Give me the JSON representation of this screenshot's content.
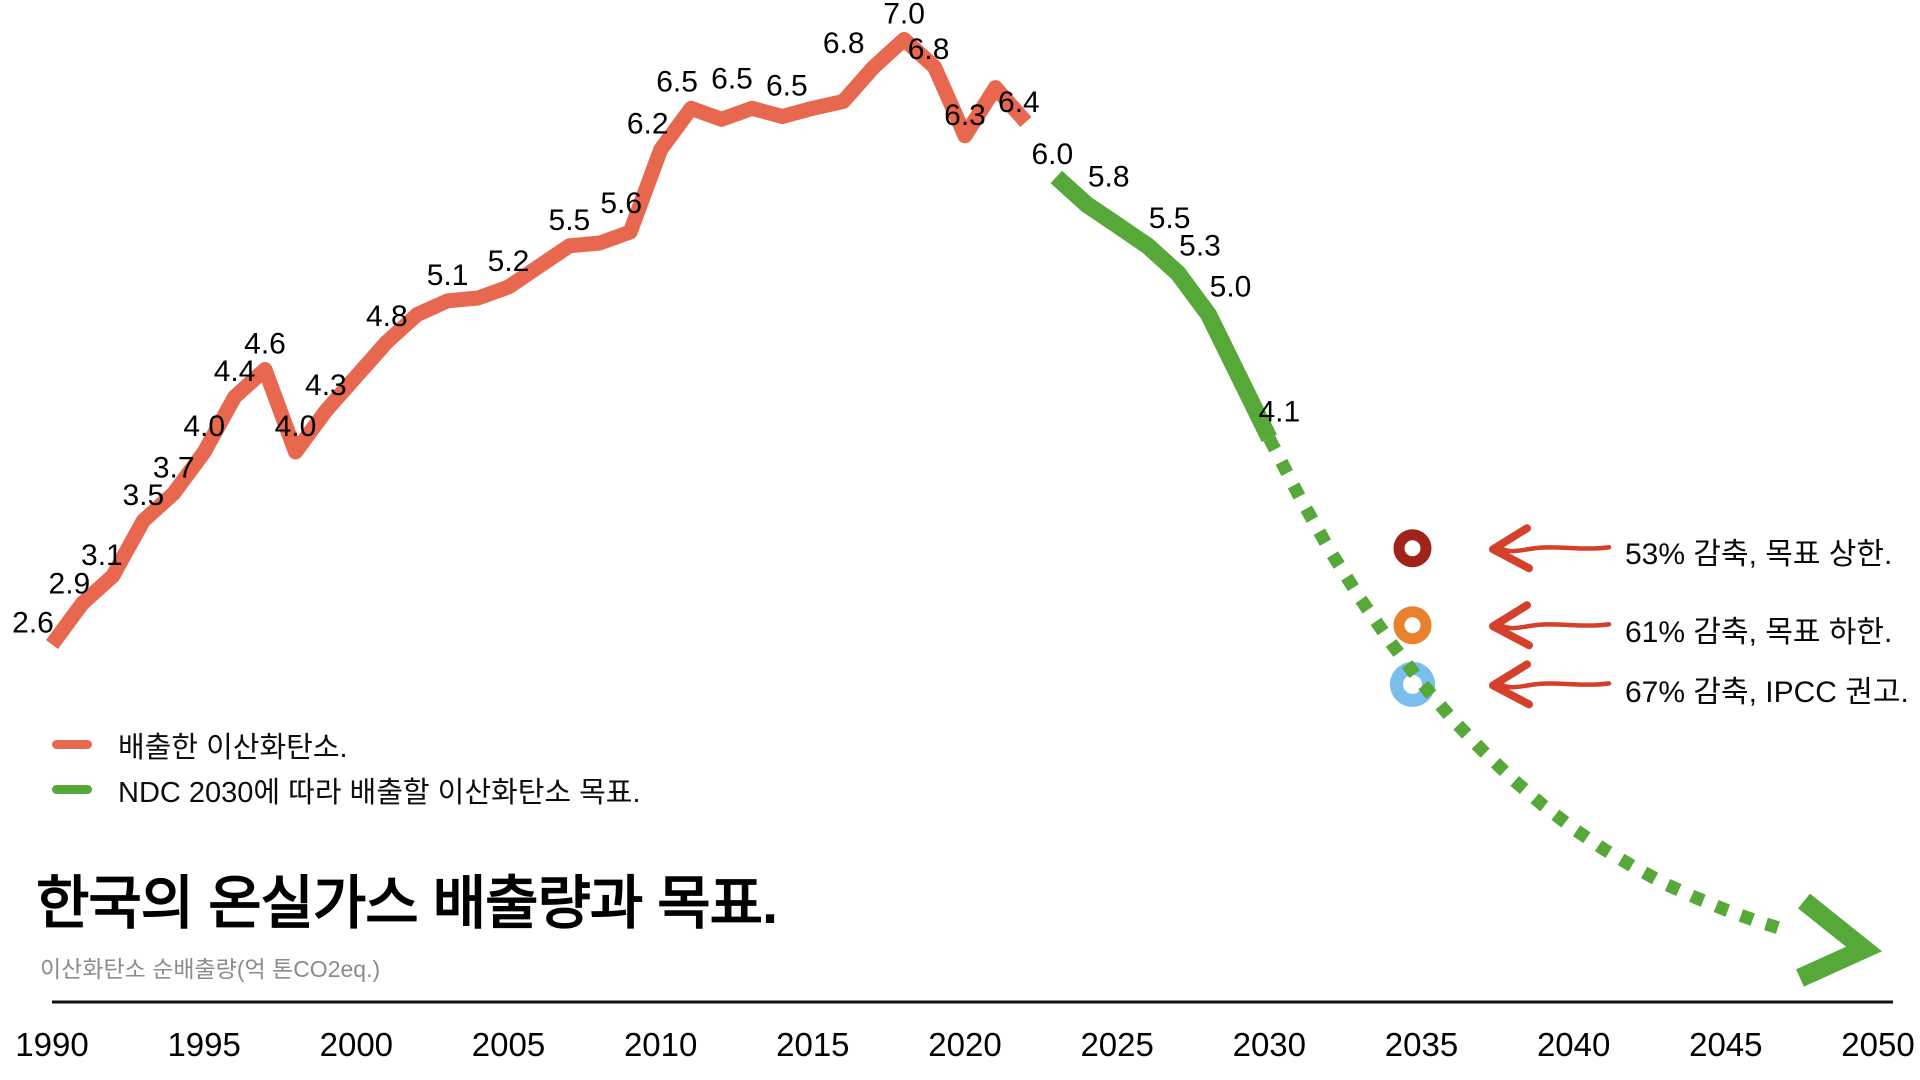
{
  "title": "한국의 온실가스 배출량과 목표.",
  "subtitle": "이산화탄소 순배출량(억 톤CO2eq.)",
  "legend": [
    {
      "label": "배출한 이산화탄소.",
      "color": "#E8684F"
    },
    {
      "label": "NDC 2030에 따라 배출할 이산화탄소 목표.",
      "color": "#56A839"
    }
  ],
  "annotations": [
    {
      "text": "53% 감축, 목표 상한.",
      "dot_color": "#A0231A",
      "year": 2035,
      "value": 3.3
    },
    {
      "text": "61% 감축, 목표 하한.",
      "dot_color": "#E8822C",
      "year": 2035,
      "value": 2.74
    },
    {
      "text": "67% 감축, IPCC 권고.",
      "dot_color": "#7CBEEB",
      "year": 2035,
      "value": 2.31
    }
  ],
  "arrow_color": "#D4402C",
  "axis_color": "#111111",
  "chart_data": {
    "type": "line",
    "title": "한국의 온실가스 배출량과 목표.",
    "xlabel": "",
    "ylabel": "이산화탄소 순배출량(억 톤CO2eq.)",
    "xlim": [
      1990,
      2050
    ],
    "ylim": [
      0,
      7.5
    ],
    "grid": false,
    "legend_position": "lower-left",
    "x_ticks": [
      1990,
      1995,
      2000,
      2005,
      2010,
      2015,
      2020,
      2025,
      2030,
      2035,
      2040,
      2045,
      2050
    ],
    "series": [
      {
        "name": "배출한 이산화탄소.",
        "color": "#E8684F",
        "style": "solid",
        "points": [
          [
            1990,
            2.6,
            "2.6"
          ],
          [
            1991,
            2.9,
            "2.9"
          ],
          [
            1992,
            3.1,
            "3.1"
          ],
          [
            1993,
            3.5,
            "3.5"
          ],
          [
            1994,
            3.7,
            "3.7"
          ],
          [
            1995,
            4.0,
            "4.0"
          ],
          [
            1996,
            4.4,
            "4.4"
          ],
          [
            1997,
            4.6,
            "4.6"
          ],
          [
            1998,
            4.0,
            "4.0"
          ],
          [
            1999,
            4.3,
            "4.3"
          ],
          [
            2000,
            4.55,
            null
          ],
          [
            2001,
            4.8,
            "4.8"
          ],
          [
            2002,
            5.0,
            null
          ],
          [
            2003,
            5.1,
            "5.1"
          ],
          [
            2004,
            5.12,
            null
          ],
          [
            2005,
            5.2,
            "5.2"
          ],
          [
            2006,
            5.35,
            null
          ],
          [
            2007,
            5.5,
            "5.5"
          ],
          [
            2008,
            5.52,
            null
          ],
          [
            2009,
            5.6,
            "5.6"
          ],
          [
            2010,
            6.2,
            "6.2"
          ],
          [
            2011,
            6.5,
            "6.5"
          ],
          [
            2012,
            6.42,
            null
          ],
          [
            2013,
            6.5,
            "6.5"
          ],
          [
            2014,
            6.44,
            null
          ],
          [
            2015,
            6.5,
            "6.5"
          ],
          [
            2016,
            6.55,
            null
          ],
          [
            2017,
            6.8,
            "6.8"
          ],
          [
            2018,
            7.0,
            "7.0"
          ],
          [
            2019,
            6.8,
            "6.8"
          ],
          [
            2020,
            6.3,
            "6.3"
          ],
          [
            2021,
            6.65,
            null
          ],
          [
            2022,
            6.4,
            "6.4"
          ]
        ]
      },
      {
        "name": "NDC 2030에 따라 배출할 이산화탄소 목표.",
        "color": "#56A839",
        "style": "solid",
        "points": [
          [
            2023,
            6.0,
            "6.0"
          ],
          [
            2024,
            5.8,
            "5.8"
          ],
          [
            2025,
            5.65,
            null
          ],
          [
            2026,
            5.5,
            "5.5"
          ],
          [
            2027,
            5.3,
            "5.3"
          ],
          [
            2028,
            5.0,
            "5.0"
          ],
          [
            2030,
            4.1,
            "4.1"
          ]
        ]
      },
      {
        "color": "#56A839",
        "style": "dotted",
        "arrow_end": true,
        "points": [
          [
            2030,
            4.1,
            null
          ],
          [
            2031,
            3.67,
            null
          ],
          [
            2032,
            3.28,
            null
          ],
          [
            2033,
            2.93,
            null
          ],
          [
            2034,
            2.61,
            null
          ],
          [
            2035,
            2.32,
            null
          ],
          [
            2036,
            2.06,
            null
          ],
          [
            2037,
            1.83,
            null
          ],
          [
            2038,
            1.62,
            null
          ],
          [
            2039,
            1.43,
            null
          ],
          [
            2040,
            1.26,
            null
          ],
          [
            2041,
            1.11,
            null
          ],
          [
            2042,
            0.98,
            null
          ],
          [
            2043,
            0.86,
            null
          ],
          [
            2044,
            0.76,
            null
          ],
          [
            2045,
            0.67,
            null
          ],
          [
            2046,
            0.59,
            null
          ],
          [
            2047,
            0.52,
            null
          ]
        ]
      }
    ]
  }
}
